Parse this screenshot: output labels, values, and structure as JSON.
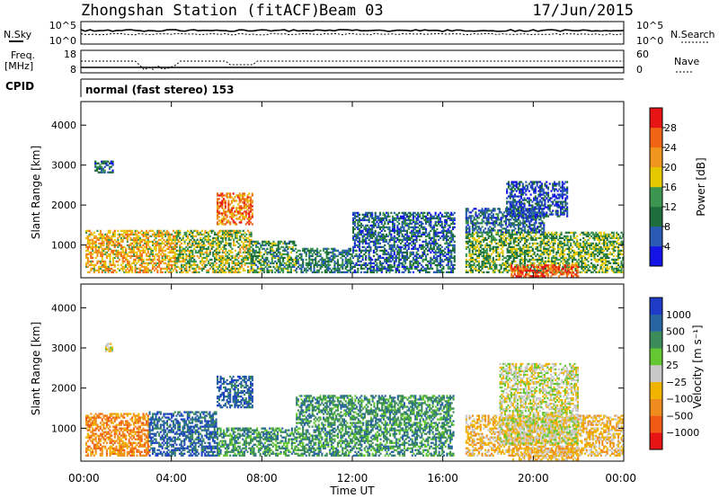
{
  "header": {
    "station": "Zhongshan Station (fitACF)",
    "beam": "Beam 03",
    "date": "17/Jun/2015"
  },
  "panels": {
    "nsky": {
      "label": "N.Sky",
      "ticks": [
        "10^5",
        "10^0"
      ]
    },
    "nsearch": {
      "label": "N.Search",
      "ticks": [
        "10^5",
        "10^0"
      ]
    },
    "freq": {
      "label_line1": "Freq.",
      "label_line2": "[MHz]",
      "ticks": [
        "18",
        "8"
      ]
    },
    "nave": {
      "label": "Nave",
      "ticks": [
        "60",
        "0"
      ]
    },
    "cpid": {
      "label": "CPID",
      "mode": "normal (fast stereo) 153"
    }
  },
  "colors": {
    "power": [
      "#1414e6",
      "#2a5ab4",
      "#1e6e3c",
      "#3c9650",
      "#e6c800",
      "#f0961e",
      "#f06414",
      "#e61414"
    ],
    "velocity": [
      "#1e3cc8",
      "#2864a0",
      "#3c8c5a",
      "#64c832",
      "#c8c8c8",
      "#f0b400",
      "#f08c1e",
      "#f05a14",
      "#e61414"
    ]
  },
  "chart_data": [
    {
      "type": "heatmap",
      "name": "power",
      "xlabel": "",
      "ylabel": "Slant Range [km]",
      "yticks": [
        "1000",
        "2000",
        "3000",
        "4000"
      ],
      "ylim": [
        180,
        4590
      ],
      "xlim": [
        0,
        24
      ],
      "colorbar": {
        "label": "Power [dB]",
        "ticks": [
          "4",
          "8",
          "12",
          "16",
          "20",
          "24",
          "28"
        ],
        "range": [
          0,
          32
        ]
      },
      "regions": [
        {
          "t": [
            0.2,
            4.2
          ],
          "r": [
            300,
            1350
          ],
          "level": 20
        },
        {
          "t": [
            4.2,
            7.5
          ],
          "r": [
            300,
            1350
          ],
          "level": 16
        },
        {
          "t": [
            7.5,
            9.5
          ],
          "r": [
            300,
            1100
          ],
          "level": 12
        },
        {
          "t": [
            6.0,
            7.6
          ],
          "r": [
            1500,
            2300
          ],
          "level": 24
        },
        {
          "t": [
            0.6,
            1.4
          ],
          "r": [
            2800,
            3100
          ],
          "level": 8
        },
        {
          "t": [
            9.5,
            12.0
          ],
          "r": [
            300,
            900
          ],
          "level": 10
        },
        {
          "t": [
            12.0,
            16.5
          ],
          "r": [
            300,
            1800
          ],
          "level": 8
        },
        {
          "t": [
            17.0,
            24.0
          ],
          "r": [
            300,
            1300
          ],
          "level": 14
        },
        {
          "t": [
            17.0,
            20.5
          ],
          "r": [
            1300,
            1900
          ],
          "level": 8
        },
        {
          "t": [
            18.8,
            21.5
          ],
          "r": [
            1700,
            2600
          ],
          "level": 6
        },
        {
          "t": [
            19.0,
            22.0
          ],
          "r": [
            200,
            500
          ],
          "level": 27
        }
      ]
    },
    {
      "type": "heatmap",
      "name": "velocity",
      "xlabel": "Time UT",
      "ylabel": "Slant Range [km]",
      "xticks": [
        "00:00",
        "04:00",
        "08:00",
        "12:00",
        "16:00",
        "20:00",
        "00:00"
      ],
      "yticks": [
        "1000",
        "2000",
        "3000",
        "4000"
      ],
      "ylim": [
        180,
        4590
      ],
      "xlim": [
        0,
        24
      ],
      "colorbar": {
        "label": "Velocity [m s⁻¹]",
        "ticks": [
          "1000",
          "500",
          "100",
          "25",
          "−25",
          "−100",
          "−500",
          "−1000"
        ]
      },
      "regions": [
        {
          "t": [
            0.2,
            3.0
          ],
          "r": [
            300,
            1350
          ],
          "level": 2
        },
        {
          "t": [
            3.0,
            6.0
          ],
          "r": [
            300,
            1400
          ],
          "level": 7
        },
        {
          "t": [
            6.0,
            7.6
          ],
          "r": [
            1500,
            2300
          ],
          "level": 7
        },
        {
          "t": [
            6.0,
            9.5
          ],
          "r": [
            300,
            1000
          ],
          "level": 6
        },
        {
          "t": [
            9.5,
            16.5
          ],
          "r": [
            300,
            1800
          ],
          "level": 6
        },
        {
          "t": [
            17.0,
            24.0
          ],
          "r": [
            300,
            1300
          ],
          "level": 3
        },
        {
          "t": [
            18.5,
            22.0
          ],
          "r": [
            600,
            2600
          ],
          "level": 4
        },
        {
          "t": [
            19.0,
            22.0
          ],
          "r": [
            200,
            500
          ],
          "level": 3
        },
        {
          "t": [
            1.0,
            1.4
          ],
          "r": [
            2900,
            3100
          ],
          "level": 4
        }
      ]
    }
  ]
}
